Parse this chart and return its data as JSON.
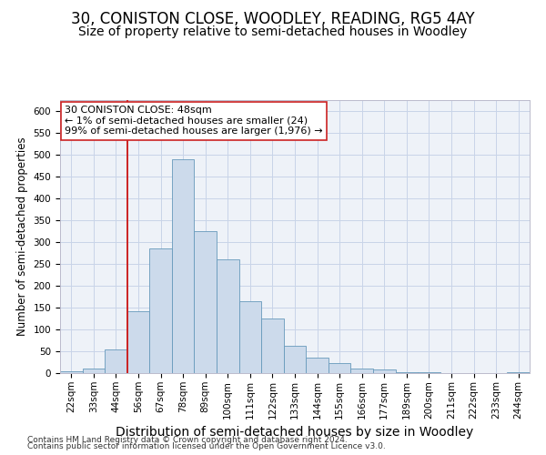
{
  "title": "30, CONISTON CLOSE, WOODLEY, READING, RG5 4AY",
  "subtitle": "Size of property relative to semi-detached houses in Woodley",
  "xlabel": "Distribution of semi-detached houses by size in Woodley",
  "ylabel": "Number of semi-detached properties",
  "footer1": "Contains HM Land Registry data © Crown copyright and database right 2024.",
  "footer2": "Contains public sector information licensed under the Open Government Licence v3.0.",
  "categories": [
    "22sqm",
    "33sqm",
    "44sqm",
    "56sqm",
    "67sqm",
    "78sqm",
    "89sqm",
    "100sqm",
    "111sqm",
    "122sqm",
    "133sqm",
    "144sqm",
    "155sqm",
    "166sqm",
    "177sqm",
    "189sqm",
    "200sqm",
    "211sqm",
    "222sqm",
    "233sqm",
    "244sqm"
  ],
  "values": [
    5,
    10,
    55,
    142,
    285,
    490,
    325,
    260,
    165,
    125,
    63,
    35,
    23,
    10,
    8,
    3,
    2,
    0,
    0,
    0,
    3
  ],
  "bar_color": "#ccdaeb",
  "bar_edge_color": "#6699bb",
  "vline_color": "#cc2222",
  "vline_x_index": 2,
  "annotation_line1": "30 CONISTON CLOSE: 48sqm",
  "annotation_line2": "← 1% of semi-detached houses are smaller (24)",
  "annotation_line3": "99% of semi-detached houses are larger (1,976) →",
  "annotation_box_facecolor": "#ffffff",
  "annotation_box_edgecolor": "#cc2222",
  "ylim": [
    0,
    625
  ],
  "yticks": [
    0,
    50,
    100,
    150,
    200,
    250,
    300,
    350,
    400,
    450,
    500,
    550,
    600
  ],
  "grid_color": "#c8d4e8",
  "bg_color": "#eef2f8",
  "title_fontsize": 12,
  "subtitle_fontsize": 10,
  "ylabel_fontsize": 8.5,
  "xlabel_fontsize": 10,
  "tick_fontsize": 7.5,
  "annot_fontsize": 8,
  "footer_fontsize": 6.5
}
